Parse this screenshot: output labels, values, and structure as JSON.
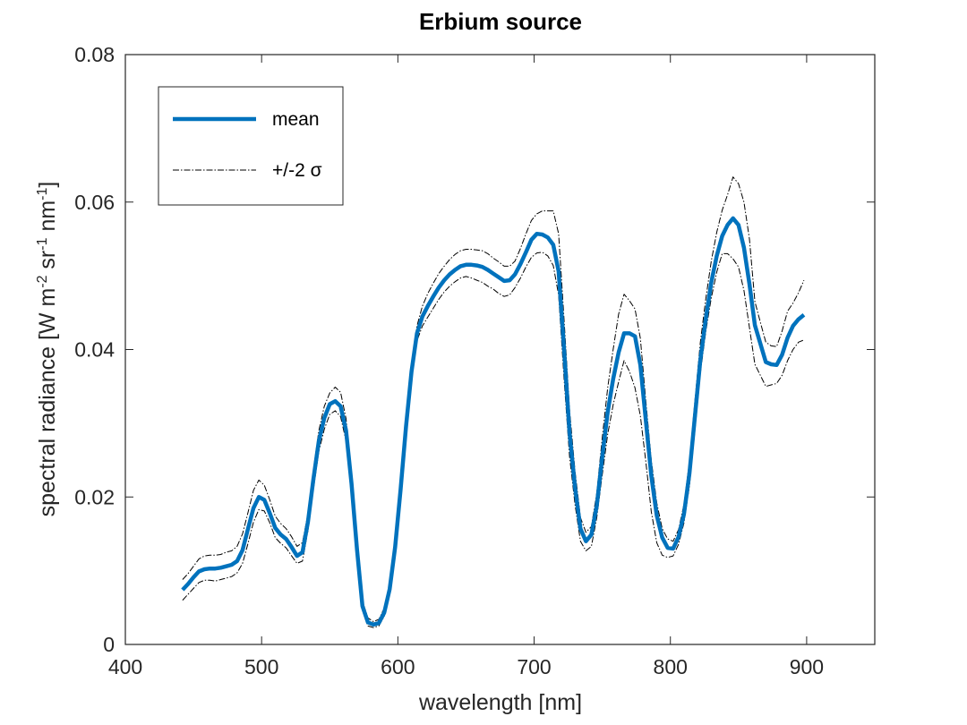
{
  "chart_data": {
    "type": "line",
    "title": "Erbium source",
    "xlabel": "wavelength [nm]",
    "ylabel_parts": [
      "spectral radiance [W m",
      "-2",
      " sr",
      "-1",
      " nm",
      "-1",
      "]"
    ],
    "xlim": [
      400,
      950
    ],
    "ylim": [
      0,
      0.08
    ],
    "xticks": [
      400,
      500,
      600,
      700,
      800,
      900
    ],
    "yticks": [
      0,
      0.02,
      0.04,
      0.06,
      0.08
    ],
    "xtick_labels": [
      "400",
      "500",
      "600",
      "700",
      "800",
      "900"
    ],
    "ytick_labels": [
      "0",
      "0.02",
      "0.04",
      "0.06",
      "0.08"
    ],
    "grid": false,
    "legend_position": "top-left",
    "colors": {
      "mean": "#0072BD",
      "band": "#000000",
      "axes": "#262626"
    },
    "series": [
      {
        "name": "mean",
        "style": "solid-thick",
        "x": [
          442,
          446,
          450,
          454,
          458,
          462,
          466,
          470,
          474,
          478,
          482,
          486,
          490,
          494,
          498,
          502,
          506,
          510,
          514,
          518,
          522,
          526,
          530,
          534,
          538,
          542,
          546,
          550,
          554,
          558,
          562,
          566,
          570,
          574,
          578,
          582,
          586,
          590,
          594,
          598,
          602,
          606,
          610,
          614,
          618,
          622,
          626,
          630,
          634,
          638,
          642,
          646,
          650,
          654,
          658,
          662,
          666,
          670,
          674,
          678,
          682,
          686,
          690,
          694,
          698,
          702,
          706,
          710,
          714,
          718,
          722,
          726,
          730,
          734,
          738,
          742,
          746,
          750,
          754,
          758,
          762,
          766,
          770,
          774,
          778,
          782,
          786,
          790,
          794,
          798,
          802,
          806,
          810,
          814,
          818,
          822,
          826,
          830,
          834,
          838,
          842,
          846,
          850,
          854,
          858,
          862,
          866,
          870,
          874,
          878,
          882,
          886,
          890,
          894,
          898
        ],
        "y": [
          0.0074,
          0.0082,
          0.0091,
          0.0099,
          0.0102,
          0.0103,
          0.0103,
          0.0104,
          0.0106,
          0.0108,
          0.0113,
          0.0128,
          0.0157,
          0.0185,
          0.02,
          0.0196,
          0.0178,
          0.0158,
          0.0149,
          0.0143,
          0.0132,
          0.012,
          0.0125,
          0.0166,
          0.0224,
          0.0276,
          0.0307,
          0.0326,
          0.033,
          0.0323,
          0.029,
          0.0218,
          0.0129,
          0.0052,
          0.003,
          0.0027,
          0.0029,
          0.0043,
          0.0075,
          0.0132,
          0.021,
          0.0296,
          0.037,
          0.0422,
          0.0445,
          0.0459,
          0.0472,
          0.0484,
          0.0494,
          0.0502,
          0.0508,
          0.0513,
          0.0515,
          0.0515,
          0.0514,
          0.0512,
          0.0508,
          0.0503,
          0.0498,
          0.0493,
          0.0494,
          0.0502,
          0.0516,
          0.0532,
          0.0549,
          0.0557,
          0.0556,
          0.0552,
          0.0542,
          0.0506,
          0.04,
          0.0287,
          0.0213,
          0.0157,
          0.014,
          0.0149,
          0.0188,
          0.0254,
          0.0315,
          0.036,
          0.0396,
          0.0422,
          0.0422,
          0.0418,
          0.0379,
          0.0304,
          0.0229,
          0.0175,
          0.0145,
          0.0131,
          0.013,
          0.0146,
          0.0177,
          0.0232,
          0.0309,
          0.0386,
          0.0442,
          0.0491,
          0.0527,
          0.0554,
          0.0569,
          0.0578,
          0.0569,
          0.0538,
          0.0489,
          0.0433,
          0.0408,
          0.0383,
          0.038,
          0.0379,
          0.0393,
          0.0416,
          0.0432,
          0.0441,
          0.0447
        ]
      },
      {
        "name": "+/-2 σ",
        "style": "dashdot-thin",
        "x": [
          442,
          446,
          450,
          454,
          458,
          462,
          466,
          470,
          474,
          478,
          482,
          486,
          490,
          494,
          498,
          502,
          506,
          510,
          514,
          518,
          522,
          526,
          530,
          534,
          538,
          542,
          546,
          550,
          554,
          558,
          562,
          566,
          570,
          574,
          578,
          582,
          586,
          590,
          594,
          598,
          602,
          606,
          610,
          614,
          618,
          622,
          626,
          630,
          634,
          638,
          642,
          646,
          650,
          654,
          658,
          662,
          666,
          670,
          674,
          678,
          682,
          686,
          690,
          694,
          698,
          702,
          706,
          710,
          714,
          718,
          722,
          726,
          730,
          734,
          738,
          742,
          746,
          750,
          754,
          758,
          762,
          766,
          770,
          774,
          778,
          782,
          786,
          790,
          794,
          798,
          802,
          806,
          810,
          814,
          818,
          822,
          826,
          830,
          834,
          838,
          842,
          846,
          850,
          854,
          858,
          862,
          866,
          870,
          874,
          878,
          882,
          886,
          890,
          894,
          898
        ],
        "y": [
          0.0088,
          0.0096,
          0.0106,
          0.0116,
          0.012,
          0.0121,
          0.0121,
          0.0122,
          0.0125,
          0.0127,
          0.0133,
          0.015,
          0.0179,
          0.0209,
          0.0223,
          0.0216,
          0.0196,
          0.0174,
          0.0164,
          0.0157,
          0.0146,
          0.0133,
          0.0138,
          0.0177,
          0.0236,
          0.029,
          0.0323,
          0.0341,
          0.0349,
          0.0342,
          0.0306,
          0.0232,
          0.0139,
          0.0059,
          0.0036,
          0.0031,
          0.0034,
          0.0049,
          0.0082,
          0.014,
          0.0219,
          0.0306,
          0.0381,
          0.0432,
          0.0459,
          0.0476,
          0.049,
          0.0503,
          0.0513,
          0.0522,
          0.0529,
          0.0534,
          0.0536,
          0.0536,
          0.0535,
          0.0534,
          0.053,
          0.0524,
          0.0519,
          0.0513,
          0.0513,
          0.052,
          0.0537,
          0.0557,
          0.0575,
          0.0584,
          0.0588,
          0.0588,
          0.0588,
          0.0557,
          0.044,
          0.0318,
          0.0235,
          0.0172,
          0.0152,
          0.016,
          0.0205,
          0.028,
          0.0348,
          0.04,
          0.0448,
          0.0475,
          0.0466,
          0.0455,
          0.0415,
          0.033,
          0.025,
          0.0192,
          0.0157,
          0.0143,
          0.014,
          0.0156,
          0.019,
          0.0248,
          0.033,
          0.041,
          0.0469,
          0.052,
          0.0559,
          0.0589,
          0.061,
          0.0634,
          0.0625,
          0.06,
          0.055,
          0.0465,
          0.0437,
          0.041,
          0.0405,
          0.0404,
          0.0425,
          0.0452,
          0.0463,
          0.0477,
          0.0494
        ]
      },
      {
        "name": "",
        "style": "dashdot-thin",
        "x": [
          442,
          446,
          450,
          454,
          458,
          462,
          466,
          470,
          474,
          478,
          482,
          486,
          490,
          494,
          498,
          502,
          506,
          510,
          514,
          518,
          522,
          526,
          530,
          534,
          538,
          542,
          546,
          550,
          554,
          558,
          562,
          566,
          570,
          574,
          578,
          582,
          586,
          590,
          594,
          598,
          602,
          606,
          610,
          614,
          618,
          622,
          626,
          630,
          634,
          638,
          642,
          646,
          650,
          654,
          658,
          662,
          666,
          670,
          674,
          678,
          682,
          686,
          690,
          694,
          698,
          702,
          706,
          710,
          714,
          718,
          722,
          726,
          730,
          734,
          738,
          742,
          746,
          750,
          754,
          758,
          762,
          766,
          770,
          774,
          778,
          782,
          786,
          790,
          794,
          798,
          802,
          806,
          810,
          814,
          818,
          822,
          826,
          830,
          834,
          838,
          842,
          846,
          850,
          854,
          858,
          862,
          866,
          870,
          874,
          878,
          882,
          886,
          890,
          894,
          898
        ],
        "y": [
          0.006,
          0.0068,
          0.0076,
          0.0084,
          0.0087,
          0.0087,
          0.0086,
          0.0088,
          0.009,
          0.0092,
          0.0097,
          0.011,
          0.0137,
          0.0166,
          0.0183,
          0.0181,
          0.0165,
          0.0145,
          0.0137,
          0.0131,
          0.012,
          0.011,
          0.0113,
          0.0154,
          0.021,
          0.0262,
          0.0292,
          0.0312,
          0.0317,
          0.0309,
          0.0276,
          0.0205,
          0.012,
          0.0046,
          0.0025,
          0.0023,
          0.0025,
          0.0038,
          0.0069,
          0.0125,
          0.0203,
          0.0288,
          0.0361,
          0.0412,
          0.0432,
          0.0444,
          0.0456,
          0.0468,
          0.0478,
          0.0486,
          0.0492,
          0.0497,
          0.0499,
          0.0497,
          0.0494,
          0.0491,
          0.0486,
          0.0482,
          0.0476,
          0.0472,
          0.0474,
          0.0484,
          0.0497,
          0.0512,
          0.0525,
          0.0531,
          0.0532,
          0.0527,
          0.0514,
          0.0474,
          0.036,
          0.0255,
          0.019,
          0.014,
          0.0127,
          0.0133,
          0.0172,
          0.023,
          0.0285,
          0.0325,
          0.0356,
          0.0385,
          0.037,
          0.0348,
          0.031,
          0.0248,
          0.018,
          0.0138,
          0.0121,
          0.0118,
          0.012,
          0.0136,
          0.0165,
          0.0215,
          0.029,
          0.0368,
          0.0425,
          0.047,
          0.0505,
          0.053,
          0.053,
          0.0523,
          0.0512,
          0.048,
          0.043,
          0.038,
          0.0365,
          0.035,
          0.0352,
          0.0354,
          0.0365,
          0.0385,
          0.04,
          0.041,
          0.0413
        ]
      }
    ]
  }
}
